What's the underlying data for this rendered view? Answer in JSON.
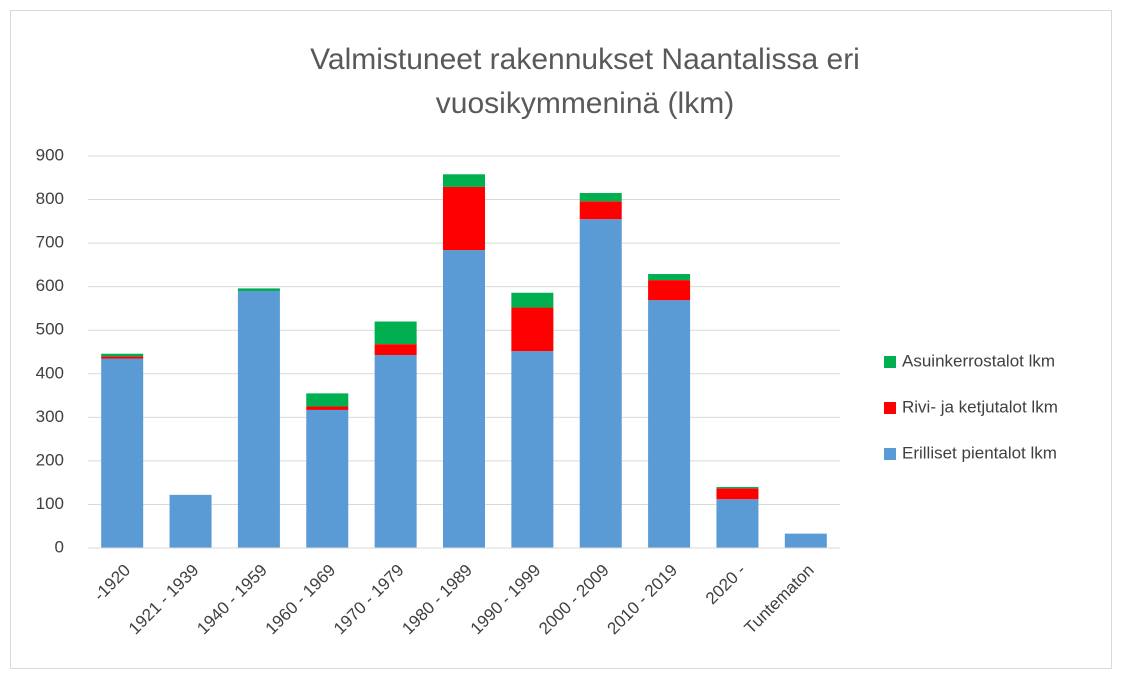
{
  "chart_data": {
    "type": "bar",
    "stacked": true,
    "title": "Valmistuneet rakennukset Naantalissa eri vuosikymmeninä (lkm)",
    "categories": [
      "-1920",
      "1921 - 1939",
      "1940 - 1959",
      "1960 - 1969",
      "1970 - 1979",
      "1980 - 1989",
      "1990 - 1999",
      "2000 - 2009",
      "2010 - 2019",
      "2020 -",
      "Tuntematon"
    ],
    "series": [
      {
        "name": "Erilliset pientalot lkm",
        "color": "#5b9bd5",
        "values": [
          435,
          122,
          590,
          317,
          443,
          684,
          452,
          755,
          569,
          112,
          33
        ]
      },
      {
        "name": "Rivi- ja ketjutalot lkm",
        "color": "#ff0000",
        "values": [
          5,
          0,
          0,
          8,
          25,
          145,
          100,
          41,
          46,
          25,
          0
        ]
      },
      {
        "name": "Asuinkerrostalot lkm",
        "color": "#00b050",
        "values": [
          6,
          0,
          6,
          30,
          52,
          29,
          34,
          19,
          14,
          3,
          0
        ]
      }
    ],
    "ylim": [
      0,
      900
    ],
    "yticks": [
      0,
      100,
      200,
      300,
      400,
      500,
      600,
      700,
      800,
      900
    ],
    "grid": true,
    "legend": "right"
  }
}
